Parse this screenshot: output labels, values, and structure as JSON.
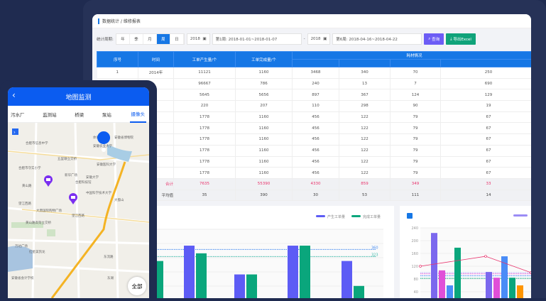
{
  "desktop": {
    "breadcrumb": "数据统计 / 维修报表",
    "period_label": "统计周期:",
    "period_options": [
      {
        "label": "年",
        "active": false
      },
      {
        "label": "季",
        "active": false
      },
      {
        "label": "月",
        "active": false
      },
      {
        "label": "周",
        "active": true
      },
      {
        "label": "日",
        "active": false
      }
    ],
    "start_year": "2018",
    "start_week": "第1周: 2018-01-01~2018-01-07",
    "range_sep": "-",
    "end_year": "2018",
    "end_week": "第6周: 2018-04-16~2018-04-22",
    "query_label": "查询",
    "export_label": "导出Excel",
    "accent": "#1677e5",
    "query_color": "#6c5cf5",
    "export_color": "#10a37a",
    "table": {
      "headers": [
        "序号",
        "时间",
        "工单产生量/个",
        "工单完成量/个"
      ],
      "group_header": "耗材情况",
      "rows": [
        [
          "1",
          "2014年",
          "11121",
          "1160",
          "3468",
          "340",
          "70",
          "250"
        ],
        [
          "",
          "",
          "96667",
          "786",
          "240",
          "13",
          "7",
          "690"
        ],
        [
          "",
          "",
          "5645",
          "5656",
          "897",
          "367",
          "124",
          "129"
        ],
        [
          "",
          "",
          "220",
          "207",
          "110",
          "298",
          "90",
          "19"
        ],
        [
          "",
          "",
          "1778",
          "1160",
          "456",
          "122",
          "79",
          "67"
        ],
        [
          "",
          "",
          "1778",
          "1160",
          "456",
          "122",
          "79",
          "67"
        ],
        [
          "",
          "",
          "1778",
          "1160",
          "456",
          "122",
          "79",
          "67"
        ],
        [
          "",
          "",
          "1778",
          "1160",
          "456",
          "122",
          "79",
          "67"
        ],
        [
          "",
          "",
          "1778",
          "1160",
          "456",
          "122",
          "79",
          "67"
        ],
        [
          "",
          "",
          "1778",
          "1160",
          "456",
          "122",
          "79",
          "67"
        ]
      ],
      "total": [
        "",
        "合计",
        "7635",
        "55390",
        "4330",
        "859",
        "349",
        "33"
      ],
      "average": [
        "",
        "平均值",
        "35",
        "390",
        "30",
        "53",
        "111",
        "14"
      ]
    }
  },
  "chart_data": [
    {
      "type": "bar",
      "legend": [
        "产生工单量",
        "完成工单量"
      ],
      "legend_placement": "top-right",
      "ylim": [
        0,
        480
      ],
      "series": [
        {
          "name": "产生工单量",
          "color": "#5d5cf5",
          "values": [
            null,
            380,
            230,
            380,
            300
          ]
        },
        {
          "name": "完成工单量",
          "color": "#0aa67c",
          "values": [
            300,
            340,
            230,
            380,
            170
          ]
        }
      ],
      "markLines": [
        {
          "value": 360,
          "color": "#4a8ef0"
        },
        {
          "value": 323,
          "color": "#3cb8a8"
        }
      ]
    },
    {
      "type": "bar",
      "ylim": [
        0,
        240
      ],
      "yticks": [
        40,
        80,
        120,
        160,
        200,
        240
      ],
      "groups": [
        [
          224,
          107,
          60,
          178
        ],
        [
          102,
          84,
          151,
          84,
          60
        ]
      ],
      "colors": [
        "#7b68ee",
        "#e04fd8",
        "#4a8cf7",
        "#0aa67c",
        "#ff9500"
      ],
      "line": {
        "color": "#e8356d",
        "values": [
          120,
          151,
          100
        ]
      },
      "dashed": [
        {
          "value": 100,
          "color": "#b9a8f5"
        },
        {
          "value": 96,
          "color": "#e04fd8"
        },
        {
          "value": 90,
          "color": "#4a8cf7"
        },
        {
          "value": 82,
          "color": "#0aa67c"
        }
      ]
    }
  ],
  "mobile": {
    "title": "地图监测",
    "tabs": [
      {
        "label": "污水厂",
        "active": false
      },
      {
        "label": "监测站",
        "active": false
      },
      {
        "label": "桥梁",
        "active": false
      },
      {
        "label": "泵站",
        "active": false
      },
      {
        "label": "摄像头",
        "active": true
      }
    ],
    "map_labels": [
      "体育馆",
      "安徽省博物院",
      "合肥市信息中学",
      "安徽农业大学",
      "五里墩立交桥",
      "安徽医科大学",
      "合肥市守实小学",
      "新华广场",
      "安徽大学",
      "黄山路",
      "合肥科技馆",
      "中国科学技术大学",
      "望江西路",
      "大蜀山",
      "大唐国际购物广场",
      "望江西路",
      "黄山路高架立交桥",
      "万达广场",
      "红星美凯龙",
      "东流路",
      "安徽省会计学校",
      "东湖"
    ],
    "all_label": "全部"
  }
}
